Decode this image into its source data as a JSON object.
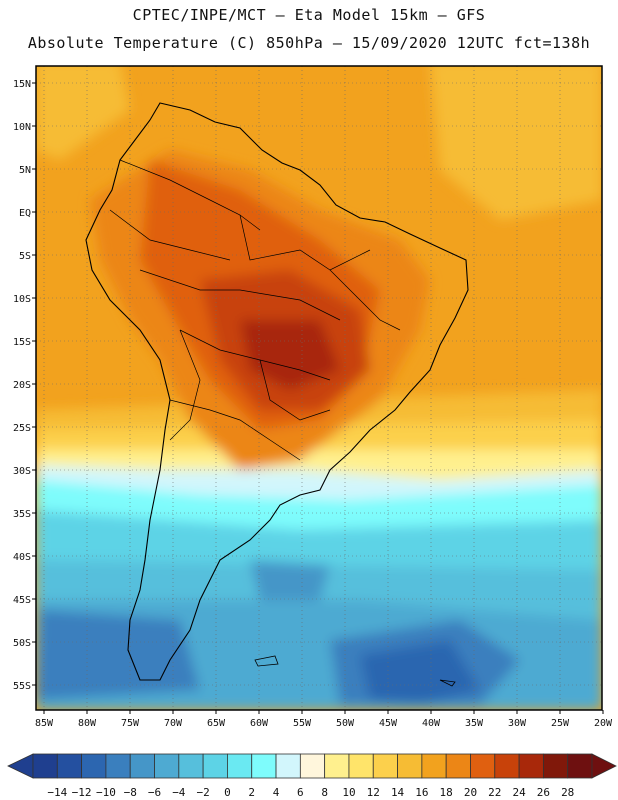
{
  "header": {
    "line1": "CPTEC/INPE/MCT –  Eta Model 15km – GFS",
    "line2": "Absolute Temperature (C) 850hPa – 15/09/2020 12UTC fct=138h"
  },
  "axes": {
    "lat_labels": [
      "15N",
      "10N",
      "5N",
      "EQ",
      "5S",
      "10S",
      "15S",
      "20S",
      "25S",
      "30S",
      "35S",
      "40S",
      "45S",
      "50S",
      "55S"
    ],
    "lon_labels": [
      "85W",
      "80W",
      "75W",
      "70W",
      "65W",
      "60W",
      "55W",
      "50W",
      "45W",
      "40W",
      "35W",
      "30W",
      "25W",
      "20W"
    ]
  },
  "colorbar": {
    "labels": [
      "-14",
      "-12",
      "-10",
      "-8",
      "-6",
      "-4",
      "-2",
      "0",
      "2",
      "4",
      "6",
      "8",
      "10",
      "12",
      "14",
      "16",
      "18",
      "20",
      "22",
      "24",
      "26",
      "28"
    ],
    "colors": [
      "#1f3f8f",
      "#2450a0",
      "#2c66b0",
      "#3a7fbe",
      "#4596c8",
      "#4eaad2",
      "#56bfdc",
      "#5dd3e6",
      "#6ae9f2",
      "#7efcfc",
      "#d2f6fc",
      "#fff6dc",
      "#fff08e",
      "#ffe46a",
      "#fcd04c",
      "#f6bc34",
      "#f2a21e",
      "#ec8616",
      "#e06010",
      "#c8420a",
      "#a8280a",
      "#80180a",
      "#6e1010"
    ]
  }
}
